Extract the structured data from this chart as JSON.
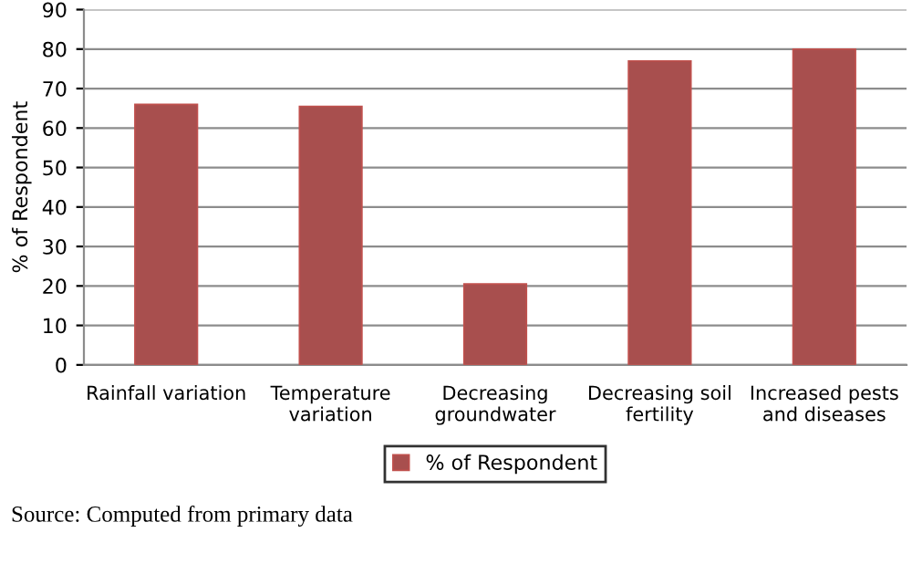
{
  "chart_data": {
    "type": "bar",
    "categories": [
      "Rainfall variation",
      "Temperature\nvariation",
      "Decreasing\ngroundwater",
      "Decreasing soil\nfertility",
      "Increased pests\nand diseases"
    ],
    "series": [
      {
        "name": "% of Respondent",
        "color": "#a84f4e",
        "values": [
          66,
          65.5,
          20.5,
          77,
          80
        ]
      }
    ],
    "ylabel": "% of Respondent",
    "ylim": [
      0,
      90
    ],
    "yticks": [
      0,
      10,
      20,
      30,
      40,
      50,
      60,
      70,
      80,
      90
    ],
    "grid": "y",
    "legend": "bottom",
    "annotations": [
      "Source: Computed from primary data"
    ]
  }
}
